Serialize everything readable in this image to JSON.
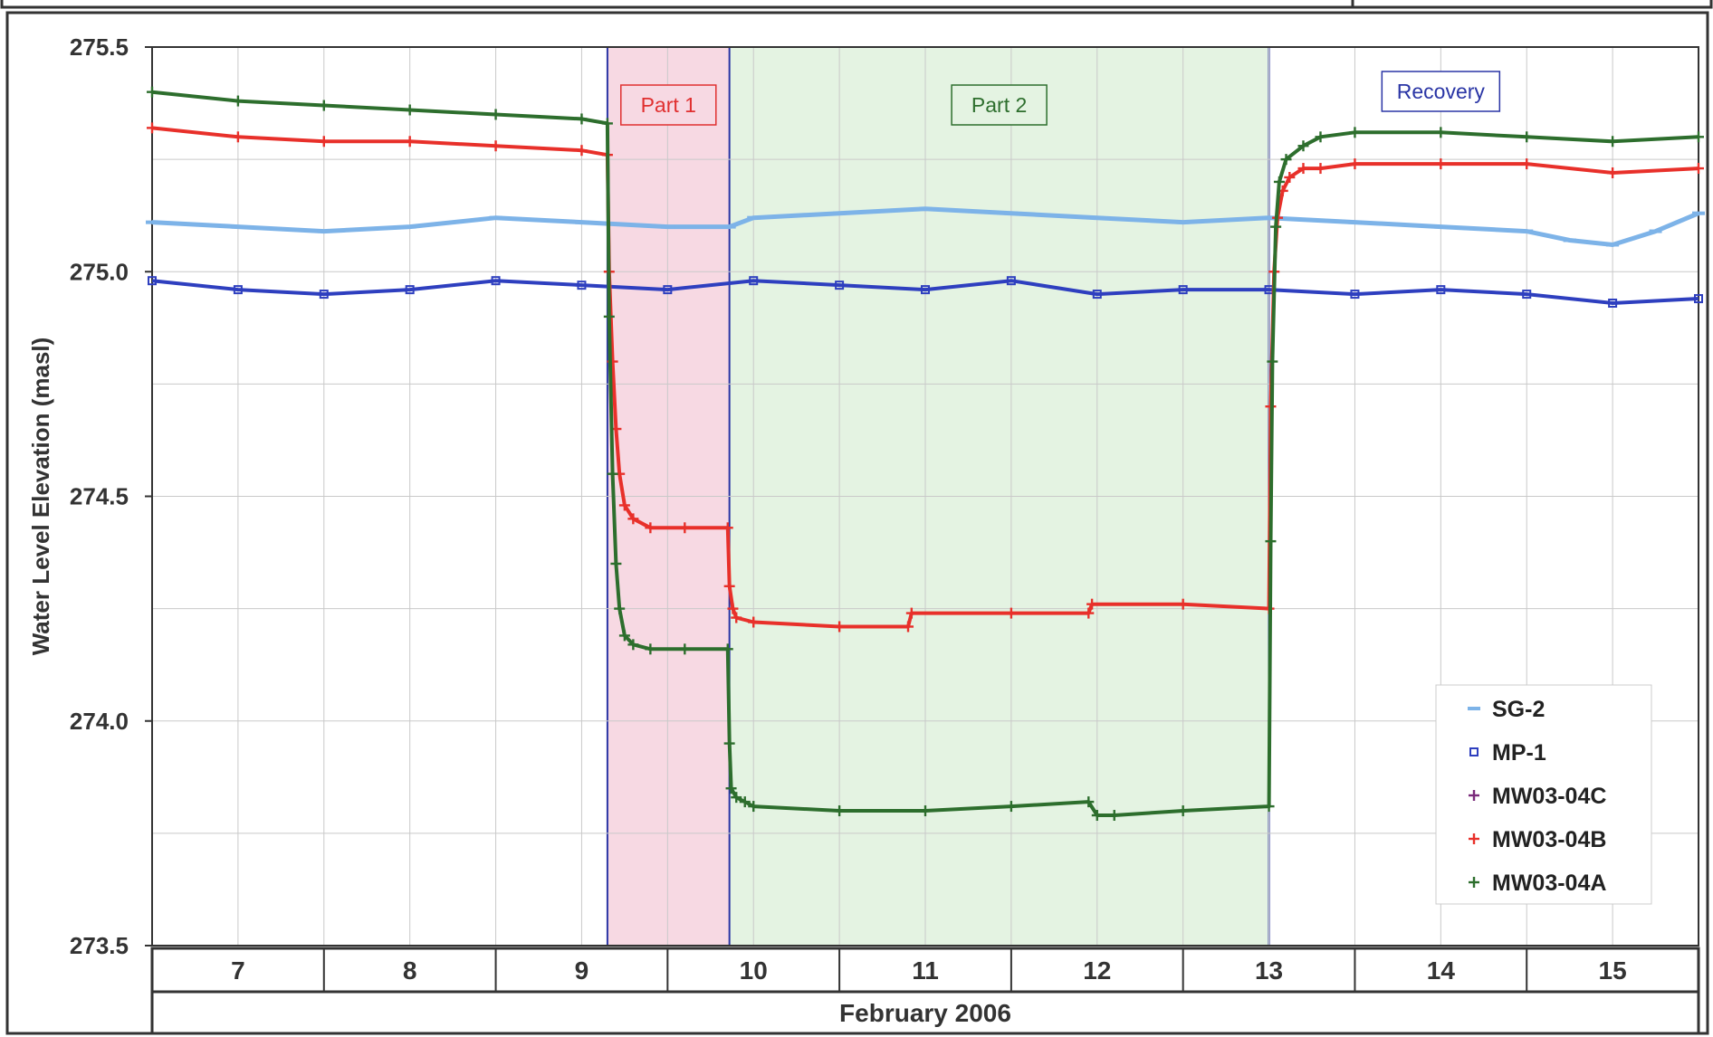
{
  "chart_data": {
    "type": "scatter",
    "ylabel": "Water Level Elevation (masl)",
    "xlabel": "February 2006",
    "x_unit": "day of February 2006",
    "xlim": [
      6.5,
      15.5
    ],
    "ylim": [
      273.5,
      275.5
    ],
    "y_ticks": [
      "273.5",
      "274.0",
      "274.5",
      "275.0",
      "275.5"
    ],
    "y_tick_values": [
      273.5,
      274.0,
      274.5,
      275.0,
      275.5
    ],
    "x_categories": [
      "7",
      "8",
      "9",
      "10",
      "11",
      "12",
      "13",
      "14",
      "15"
    ],
    "grid": true,
    "legend_position": "bottom-right",
    "phases": [
      {
        "label": "Part 1",
        "start": 9.15,
        "end": 9.86,
        "color": "#f7d9e3",
        "border": "#e03030"
      },
      {
        "label": "Part 2",
        "start": 9.86,
        "end": 13.0,
        "color": "#e4f3e2",
        "border": "#2d6e2d"
      },
      {
        "label": "Recovery",
        "start": 13.0,
        "end": 15.5,
        "color": "#ffffff",
        "border": "#2a35a5"
      }
    ],
    "series": [
      {
        "name": "SG-2",
        "marker": "dash",
        "color": "#7db3e8",
        "x": [
          6.5,
          7.0,
          7.5,
          8.0,
          8.5,
          9.0,
          9.5,
          9.86,
          10.0,
          10.5,
          11.0,
          11.5,
          12.0,
          12.5,
          13.0,
          13.5,
          14.0,
          14.5,
          14.75,
          15.0,
          15.25,
          15.5
        ],
        "y": [
          275.11,
          275.1,
          275.09,
          275.1,
          275.12,
          275.11,
          275.1,
          275.1,
          275.12,
          275.13,
          275.14,
          275.13,
          275.12,
          275.11,
          275.12,
          275.11,
          275.1,
          275.09,
          275.07,
          275.06,
          275.09,
          275.13
        ]
      },
      {
        "name": "MP-1",
        "marker": "square",
        "color": "#2e3fbf",
        "x": [
          6.5,
          7.0,
          7.5,
          8.0,
          8.5,
          9.0,
          9.5,
          10.0,
          10.5,
          11.0,
          11.5,
          12.0,
          12.5,
          13.0,
          13.5,
          14.0,
          14.5,
          15.0,
          15.5
        ],
        "y": [
          274.98,
          274.96,
          274.95,
          274.96,
          274.98,
          274.97,
          274.96,
          274.98,
          274.97,
          274.96,
          274.98,
          274.95,
          274.96,
          274.96,
          274.95,
          274.96,
          274.95,
          274.93,
          274.94
        ]
      },
      {
        "name": "MW03-04C",
        "marker": "plus",
        "color": "#7a2a7a",
        "x": [],
        "y": []
      },
      {
        "name": "MW03-04B",
        "marker": "plus",
        "color": "#e8302a",
        "x": [
          6.5,
          7.0,
          7.5,
          8.0,
          8.5,
          9.0,
          9.15,
          9.16,
          9.18,
          9.2,
          9.22,
          9.25,
          9.3,
          9.4,
          9.6,
          9.85,
          9.86,
          9.88,
          9.9,
          10.0,
          10.5,
          10.9,
          10.92,
          11.5,
          11.95,
          11.97,
          12.5,
          13.0,
          13.01,
          13.03,
          13.05,
          13.08,
          13.12,
          13.2,
          13.3,
          13.5,
          14.0,
          14.5,
          15.0,
          15.5
        ],
        "y": [
          275.32,
          275.3,
          275.29,
          275.29,
          275.28,
          275.27,
          275.26,
          275.0,
          274.8,
          274.65,
          274.55,
          274.48,
          274.45,
          274.43,
          274.43,
          274.43,
          274.3,
          274.25,
          274.23,
          274.22,
          274.21,
          274.21,
          274.24,
          274.24,
          274.24,
          274.26,
          274.26,
          274.25,
          274.7,
          275.0,
          275.12,
          275.18,
          275.21,
          275.23,
          275.23,
          275.24,
          275.24,
          275.24,
          275.22,
          275.23
        ]
      },
      {
        "name": "MW03-04A",
        "marker": "plus",
        "color": "#2d6e2d",
        "x": [
          6.5,
          7.0,
          7.5,
          8.0,
          8.5,
          9.0,
          9.15,
          9.16,
          9.18,
          9.2,
          9.22,
          9.25,
          9.3,
          9.4,
          9.6,
          9.85,
          9.86,
          9.87,
          9.9,
          9.95,
          10.0,
          10.5,
          11.0,
          11.5,
          11.95,
          12.0,
          12.1,
          12.5,
          13.0,
          13.01,
          13.02,
          13.04,
          13.06,
          13.1,
          13.2,
          13.3,
          13.5,
          14.0,
          14.5,
          15.0,
          15.5
        ],
        "y": [
          275.4,
          275.38,
          275.37,
          275.36,
          275.35,
          275.34,
          275.33,
          274.9,
          274.55,
          274.35,
          274.25,
          274.19,
          274.17,
          274.16,
          274.16,
          274.16,
          273.95,
          273.85,
          273.83,
          273.82,
          273.81,
          273.8,
          273.8,
          273.81,
          273.82,
          273.79,
          273.79,
          273.8,
          273.81,
          274.4,
          274.8,
          275.1,
          275.2,
          275.25,
          275.28,
          275.3,
          275.31,
          275.31,
          275.3,
          275.29,
          275.3
        ]
      }
    ]
  }
}
